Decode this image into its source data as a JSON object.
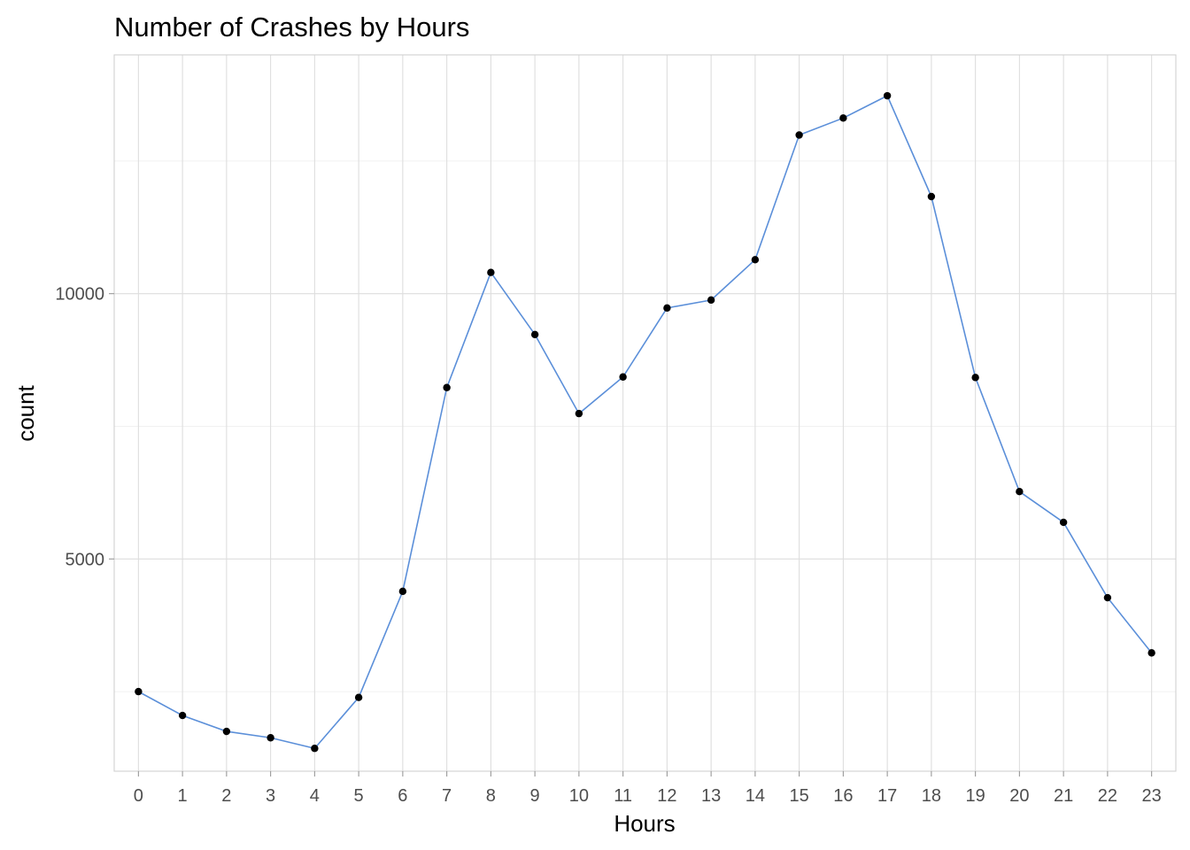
{
  "chart_data": {
    "type": "line",
    "title": "Number of Crashes by Hours",
    "xlabel": "Hours",
    "ylabel": "count",
    "x": [
      0,
      1,
      2,
      3,
      4,
      5,
      6,
      7,
      8,
      9,
      10,
      11,
      12,
      13,
      14,
      15,
      16,
      17,
      18,
      19,
      20,
      21,
      22,
      23
    ],
    "x_tick_labels": [
      "0",
      "1",
      "2",
      "3",
      "4",
      "5",
      "6",
      "7",
      "8",
      "9",
      "10",
      "11",
      "12",
      "13",
      "14",
      "15",
      "16",
      "17",
      "18",
      "19",
      "20",
      "21",
      "22",
      "23"
    ],
    "values": [
      2500,
      2050,
      1750,
      1630,
      1430,
      2390,
      4390,
      8230,
      10400,
      9230,
      7740,
      8430,
      9730,
      9880,
      10640,
      12990,
      13310,
      13730,
      11830,
      8420,
      6270,
      5690,
      4270,
      3230
    ],
    "y_ticks": [
      5000,
      10000
    ],
    "y_tick_labels": [
      "5000",
      "10000"
    ],
    "ylim": [
      1000,
      14500
    ],
    "xlim": [
      -0.55,
      23.55
    ],
    "grid": true,
    "line_color": "#5b8fd9",
    "point_color": "#000000"
  }
}
